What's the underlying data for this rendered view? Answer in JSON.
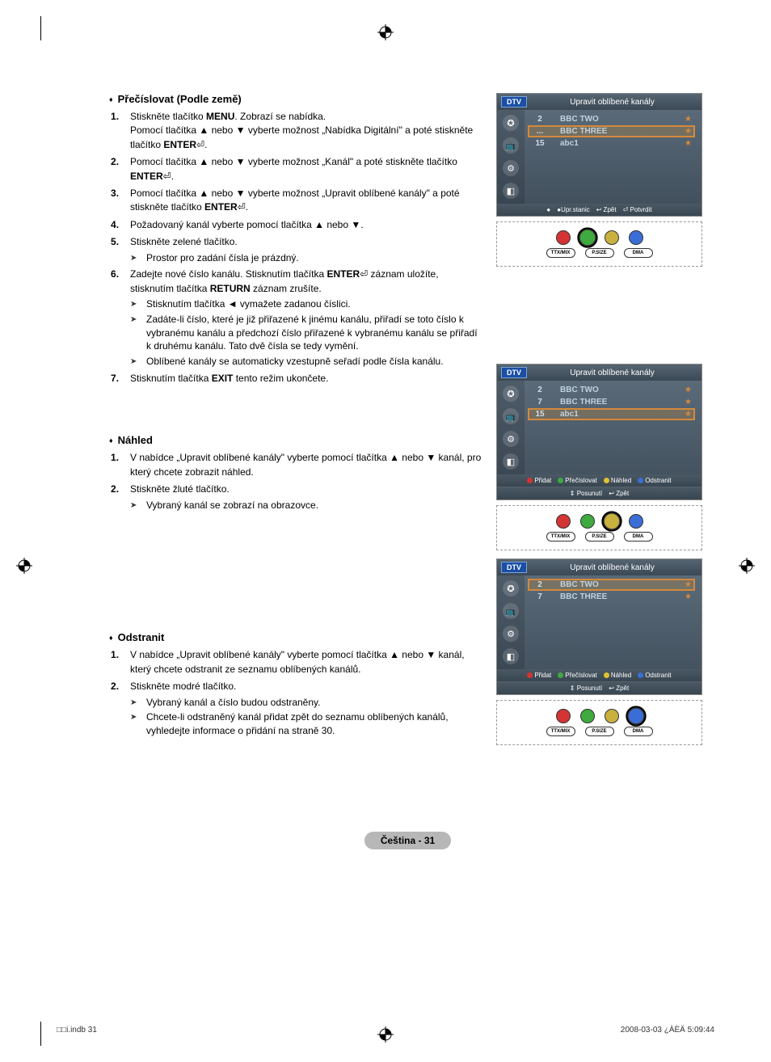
{
  "sections": {
    "renumber": {
      "title": "Přečíslovat (Podle země)",
      "steps": [
        {
          "pre": "Stiskněte tlačítko ",
          "b1": "MENU",
          "rest": ". Zobrazí se nabídka.",
          "line2": "Pomocí tlačítka ▲ nebo ▼ vyberte možnost „Nabídka Digitální\" a poté stiskněte tlačítko ",
          "b2": "ENTER",
          "tail": "⏎."
        },
        {
          "text": "Pomocí tlačítka ▲ nebo ▼ vyberte možnost „Kanál\" a poté stiskněte tlačítko ",
          "b": "ENTER",
          "tail": "⏎."
        },
        {
          "text": "Pomocí tlačítka ▲ nebo ▼ vyberte možnost „Upravit oblíbené kanály\" a poté stiskněte tlačítko ",
          "b": "ENTER",
          "tail": "⏎."
        },
        {
          "text": "Požadovaný kanál vyberte pomocí tlačítka ▲ nebo ▼."
        },
        {
          "text": "Stiskněte zelené tlačítko.",
          "note1": "Prostor pro zadání čísla je prázdný."
        },
        {
          "text": "Zadejte nové číslo kanálu. Stisknutím tlačítka ",
          "b": "ENTER",
          "mid": "⏎ záznam uložíte, stisknutím tlačítka ",
          "b2": "RETURN",
          "tail": " záznam zrušíte.",
          "notes": [
            "Stisknutím tlačítka ◄ vymažete zadanou číslici.",
            "Zadáte-li číslo, které je již přiřazené k jinému kanálu, přiřadí se toto číslo k vybranému kanálu a předchozí číslo přiřazené k vybranému kanálu se přiřadí k druhému kanálu. Tato dvě čísla se tedy vymění.",
            "Oblíbené kanály se automaticky vzestupně seřadí podle čísla kanálu."
          ]
        },
        {
          "text": "Stisknutím tlačítka ",
          "b": "EXIT",
          "tail": " tento režim ukončete."
        }
      ]
    },
    "preview": {
      "title": "Náhled",
      "steps": [
        {
          "text": "V nabídce „Upravit oblíbené kanály\" vyberte pomocí tlačítka ▲ nebo ▼ kanál, pro který chcete zobrazit náhled."
        },
        {
          "text": "Stiskněte žluté tlačítko.",
          "note1": "Vybraný kanál se zobrazí na obrazovce."
        }
      ]
    },
    "remove": {
      "title": "Odstranit",
      "steps": [
        {
          "text": "V nabídce „Upravit oblíbené kanály\" vyberte pomocí tlačítka ▲ nebo ▼ kanál, který chcete odstranit ze seznamu oblíbených kanálů."
        },
        {
          "text": "Stiskněte modré tlačítko.",
          "notes": [
            "Vybraný kanál a číslo budou odstraněny.",
            "Chcete-li odstraněný kanál přidat zpět do seznamu oblíbených kanálů, vyhledejte informace o přidání na straně 30."
          ]
        }
      ]
    }
  },
  "tv": {
    "dtv": "DTV",
    "title": "Upravit oblíbené kanály",
    "footer_a": [
      "●",
      "●Upr.stanic",
      "↩ Zpět",
      "⏎ Potvrdit"
    ],
    "footer_b_top": [
      {
        "color": "#d43434",
        "t": "Přidat"
      },
      {
        "color": "#3faa3f",
        "t": "Přečíslovat"
      },
      {
        "color": "#e0c030",
        "t": "Náhled"
      },
      {
        "color": "#3a6ed6",
        "t": "Odstranit"
      }
    ],
    "footer_b_bot": [
      "⇕ Posunutí",
      "↩ Zpět"
    ],
    "box1": [
      {
        "n": "2",
        "c": "BBC TWO"
      },
      {
        "n": "...",
        "c": "BBC THREE",
        "sel": true
      },
      {
        "n": "15",
        "c": "abc1"
      }
    ],
    "box2": [
      {
        "n": "2",
        "c": "BBC TWO"
      },
      {
        "n": "7",
        "c": "BBC THREE"
      },
      {
        "n": "15",
        "c": "abc1",
        "sel": true
      }
    ],
    "box3": [
      {
        "n": "2",
        "c": "BBC TWO",
        "sel": true
      },
      {
        "n": "7",
        "c": "BBC THREE"
      }
    ]
  },
  "remote": {
    "labels": [
      "TTX/MIX",
      "P.SIZE",
      "DMA"
    ],
    "colors1": [
      "#d43434",
      "#3faa3f",
      "#c9b13f",
      "#3a6ed6"
    ],
    "colors2": [
      "#d43434",
      "#3faa3f",
      "#c9b13f",
      "#3a6ed6"
    ],
    "colors3": [
      "#d43434",
      "#3faa3f",
      "#c9b13f",
      "#3a6ed6"
    ]
  },
  "page_badge": "Čeština - 31",
  "footer_left": "□□i.indb   31",
  "footer_right": "2008-03-03   ¿ÀÈÄ 5:09:44"
}
